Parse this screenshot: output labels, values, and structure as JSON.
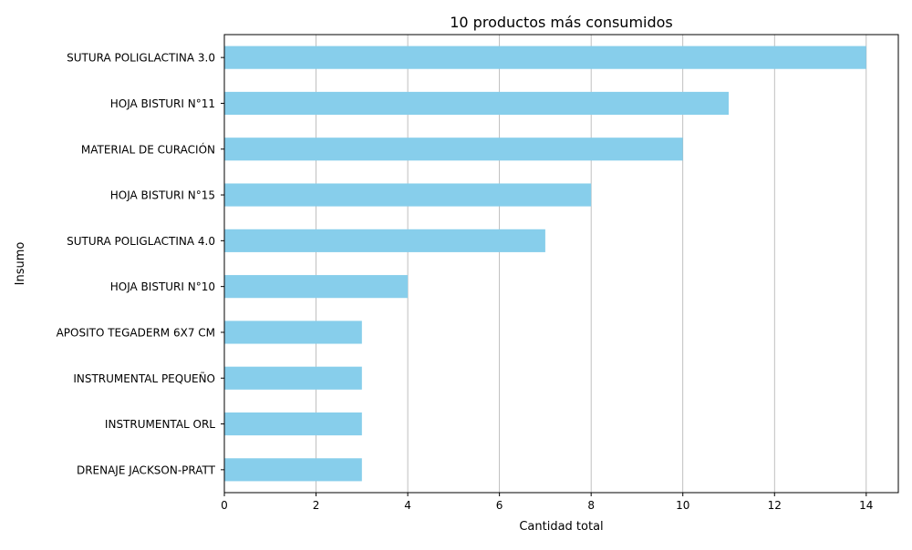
{
  "chart_data": {
    "type": "bar",
    "orientation": "horizontal",
    "title": "10 productos más consumidos",
    "xlabel": "Cantidad total",
    "ylabel": "Insumo",
    "categories": [
      "SUTURA POLIGLACTINA 3.0",
      "HOJA BISTURI N°11",
      "MATERIAL DE CURACIÓN",
      "HOJA BISTURI N°15",
      "SUTURA POLIGLACTINA 4.0",
      "HOJA BISTURI N°10",
      "APOSITO TEGADERM 6X7 CM",
      "INSTRUMENTAL PEQUEÑO",
      "INSTRUMENTAL ORL",
      "DRENAJE JACKSON-PRATT"
    ],
    "values": [
      14,
      11,
      10,
      8,
      7,
      4,
      3,
      3,
      3,
      3
    ],
    "xlim": [
      0,
      14.7
    ],
    "xticks": [
      0,
      2,
      4,
      6,
      8,
      10,
      12,
      14
    ],
    "grid": "x",
    "bar_color": "#87ceeb"
  }
}
